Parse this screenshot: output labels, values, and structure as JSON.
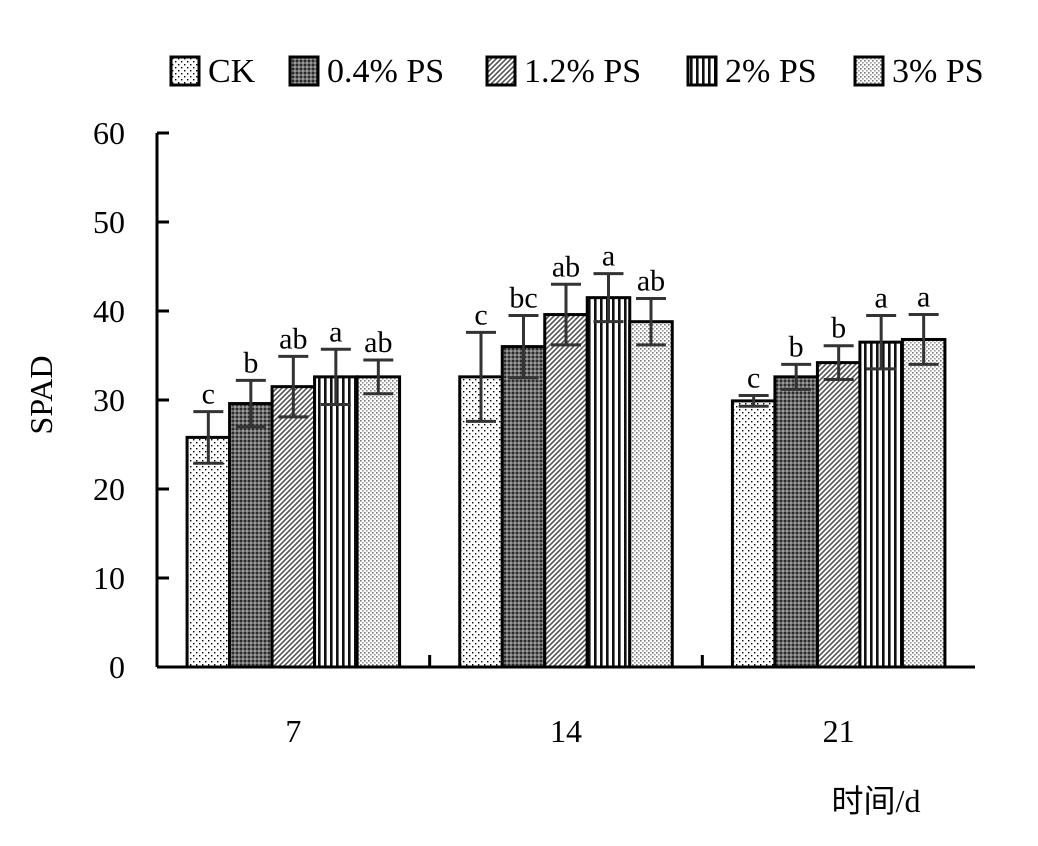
{
  "chart_data": {
    "type": "bar",
    "title": "",
    "xlabel": "时间/d",
    "ylabel": "SPAD",
    "ylim": [
      0,
      60
    ],
    "yticks": [
      0,
      10,
      20,
      30,
      40,
      50,
      60
    ],
    "categories": [
      "7",
      "14",
      "21"
    ],
    "legend_position": "top",
    "grid": false,
    "series": [
      {
        "name": "CK",
        "pattern": "dots-sparse",
        "values": [
          25.8,
          32.6,
          29.9
        ],
        "errors": [
          2.9,
          5.0,
          0.6
        ],
        "labels": [
          "c",
          "c",
          "c"
        ]
      },
      {
        "name": "0.4% PS",
        "pattern": "dense-dark",
        "values": [
          29.6,
          36.0,
          32.6
        ],
        "errors": [
          2.6,
          3.5,
          1.4
        ],
        "labels": [
          "b",
          "bc",
          "b"
        ]
      },
      {
        "name": "1.2% PS",
        "pattern": "diagonal",
        "values": [
          31.5,
          39.6,
          34.2
        ],
        "errors": [
          3.4,
          3.4,
          1.9
        ],
        "labels": [
          "ab",
          "ab",
          "b"
        ]
      },
      {
        "name": "2% PS",
        "pattern": "vertical",
        "values": [
          32.6,
          41.5,
          36.5
        ],
        "errors": [
          3.1,
          2.7,
          3.0
        ],
        "labels": [
          "a",
          "a",
          "a"
        ]
      },
      {
        "name": "3% PS",
        "pattern": "dots-dense",
        "values": [
          32.6,
          38.8,
          36.8
        ],
        "errors": [
          1.9,
          2.6,
          2.8
        ],
        "labels": [
          "ab",
          "ab",
          "a"
        ]
      }
    ]
  }
}
